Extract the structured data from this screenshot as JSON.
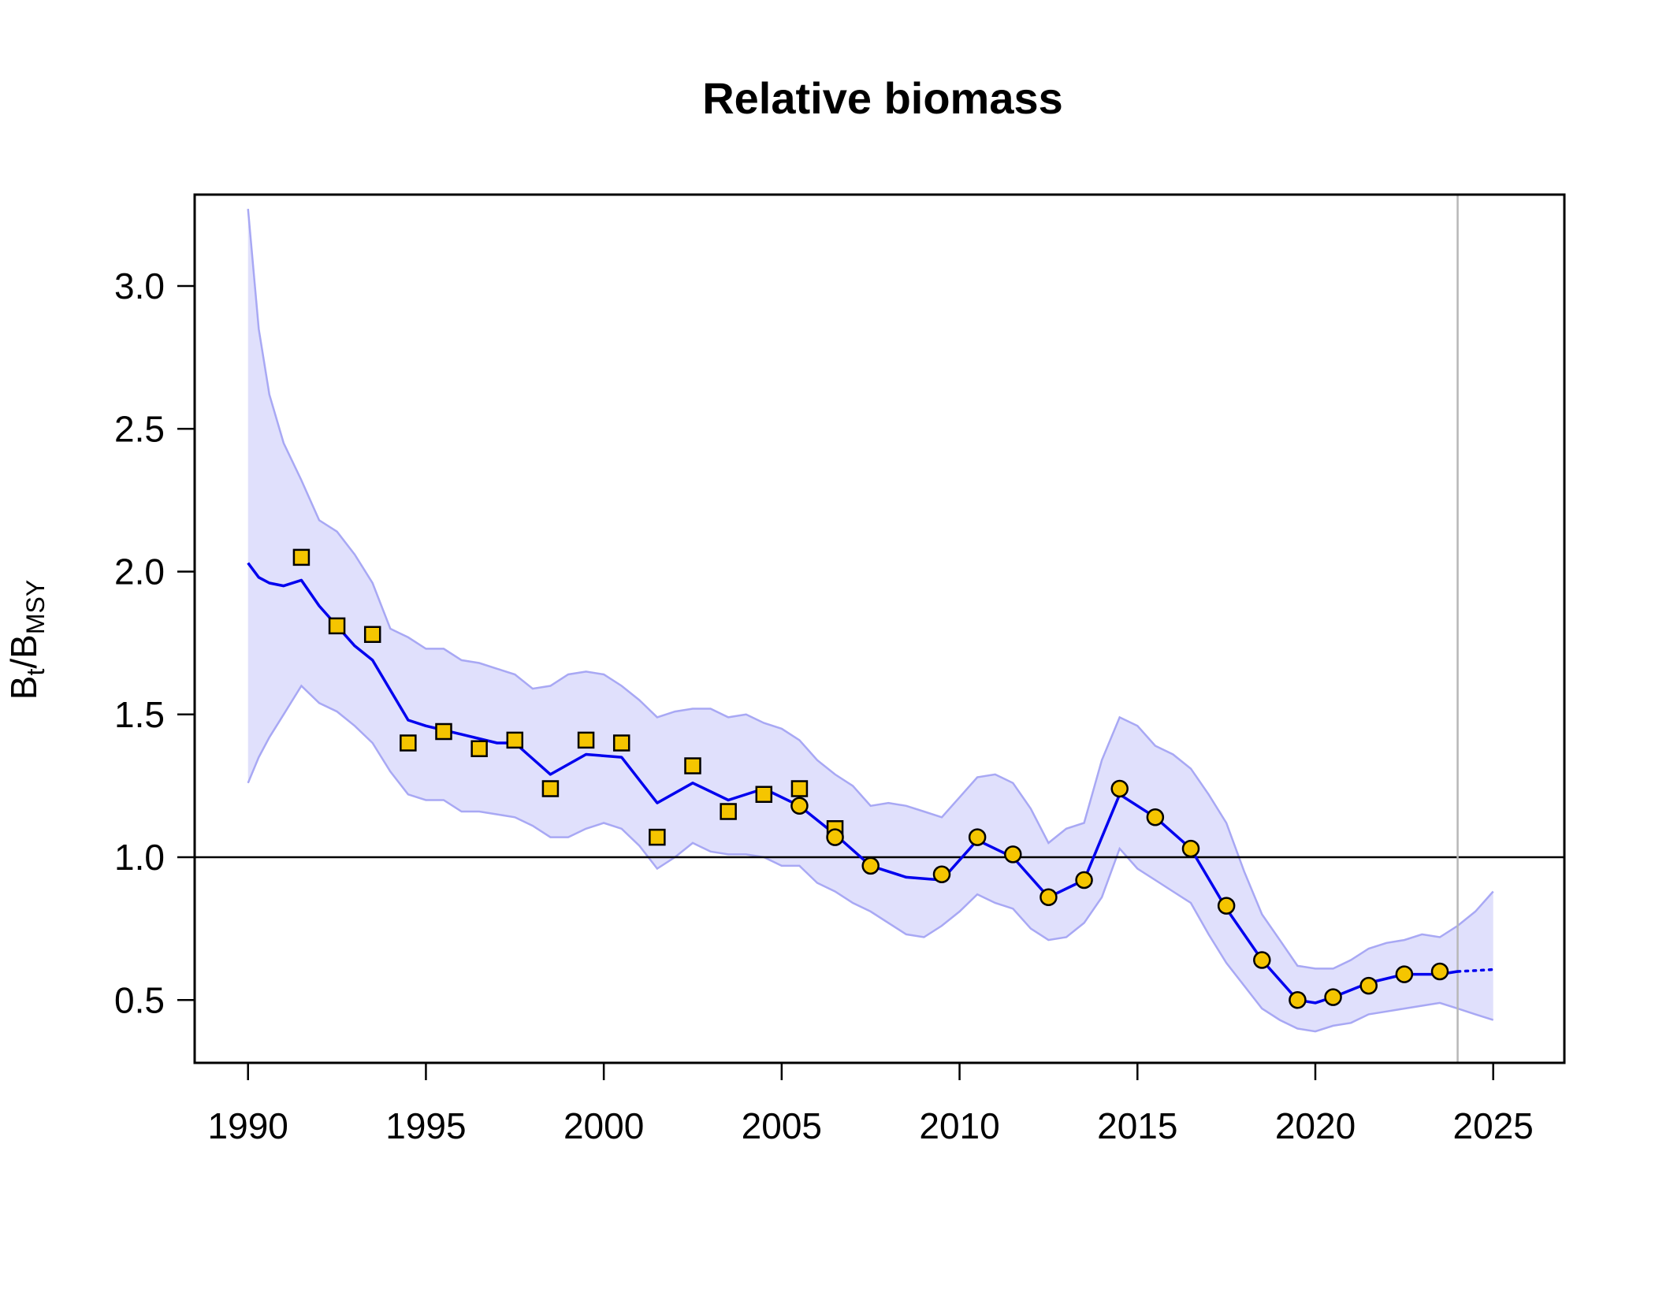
{
  "chart_data": {
    "type": "line",
    "title": "Relative biomass",
    "xlabel": "",
    "ylabel": {
      "base": "B",
      "sub_t": "t",
      "slash": "/",
      "base2": "B",
      "sub_msy": "MSY"
    },
    "xlim": [
      1988.5,
      2027
    ],
    "ylim": [
      0.28,
      3.32
    ],
    "x_ticks": [
      1990,
      1995,
      2000,
      2005,
      2010,
      2015,
      2020,
      2025
    ],
    "x_tick_labels": [
      "1990",
      "1995",
      "2000",
      "2005",
      "2010",
      "2015",
      "2020",
      "2025"
    ],
    "y_ticks": [
      0.5,
      1.0,
      1.5,
      2.0,
      2.5,
      3.0
    ],
    "y_tick_labels": [
      "0.5",
      "1.0",
      "1.5",
      "2.0",
      "2.5",
      "3.0"
    ],
    "reference_line": 1.0,
    "assessment_year_line": 2024,
    "grid": false,
    "colors": {
      "estimate_line": "#0000ee",
      "ci_fill": "#e0e0fc",
      "ci_edge": "#a8a8f4",
      "marker_fill": "#f5c500",
      "marker_edge": "#000000",
      "reference_line": "#000000",
      "vertical_line": "#b8b8b8"
    },
    "estimate": {
      "x": [
        1990,
        1990.3,
        1990.6,
        1991,
        1991.5,
        1992,
        1993,
        1993.5,
        1994.5,
        1995,
        1996,
        1997,
        1997.5,
        1998.5,
        1999.5,
        2000.5,
        2001.5,
        2002.5,
        2003.5,
        2004.5,
        2005.5,
        2006.5,
        2007.5,
        2008.5,
        2009.5,
        2010.5,
        2011.5,
        2012.5,
        2013.5,
        2014.5,
        2015.5,
        2016.5,
        2017.5,
        2018.5,
        2019.5,
        2020.0,
        2020.5,
        2021.5,
        2022.5,
        2023.5,
        2024
      ],
      "y": [
        2.03,
        1.98,
        1.96,
        1.95,
        1.97,
        1.88,
        1.74,
        1.69,
        1.48,
        1.46,
        1.43,
        1.4,
        1.4,
        1.29,
        1.36,
        1.35,
        1.19,
        1.26,
        1.2,
        1.24,
        1.18,
        1.08,
        0.97,
        0.93,
        0.92,
        1.06,
        1.0,
        0.86,
        0.92,
        1.22,
        1.14,
        1.03,
        0.82,
        0.64,
        0.5,
        0.49,
        0.51,
        0.56,
        0.59,
        0.59,
        0.6
      ]
    },
    "projection": {
      "x": [
        2024,
        2024.5,
        2025
      ],
      "y": [
        0.6,
        0.603,
        0.607
      ]
    },
    "ci_upper": {
      "x": [
        1990,
        1990.3,
        1990.6,
        1991,
        1991.5,
        1992,
        1992.5,
        1993,
        1993.5,
        1994,
        1994.5,
        1995,
        1995.5,
        1996,
        1996.5,
        1997,
        1997.5,
        1998,
        1998.5,
        1999,
        1999.5,
        2000,
        2000.5,
        2001,
        2001.5,
        2002,
        2002.5,
        2003,
        2003.5,
        2004,
        2004.5,
        2005,
        2005.5,
        2006,
        2006.5,
        2007,
        2007.5,
        2008,
        2008.5,
        2009,
        2009.5,
        2010,
        2010.5,
        2011,
        2011.5,
        2012,
        2012.5,
        2013,
        2013.5,
        2014,
        2014.5,
        2015,
        2015.5,
        2016,
        2016.5,
        2017,
        2017.5,
        2018,
        2018.5,
        2019,
        2019.5,
        2020,
        2020.5,
        2021,
        2021.5,
        2022,
        2022.5,
        2023,
        2023.5,
        2024,
        2024.5,
        2025
      ],
      "y": [
        3.27,
        2.85,
        2.62,
        2.45,
        2.32,
        2.18,
        2.14,
        2.06,
        1.96,
        1.8,
        1.77,
        1.73,
        1.73,
        1.69,
        1.68,
        1.66,
        1.64,
        1.59,
        1.6,
        1.64,
        1.65,
        1.64,
        1.6,
        1.55,
        1.49,
        1.51,
        1.52,
        1.52,
        1.49,
        1.5,
        1.47,
        1.45,
        1.41,
        1.34,
        1.29,
        1.25,
        1.18,
        1.19,
        1.18,
        1.16,
        1.14,
        1.21,
        1.28,
        1.29,
        1.26,
        1.17,
        1.05,
        1.1,
        1.12,
        1.34,
        1.49,
        1.46,
        1.39,
        1.36,
        1.31,
        1.22,
        1.12,
        0.95,
        0.8,
        0.71,
        0.62,
        0.61,
        0.61,
        0.64,
        0.68,
        0.7,
        0.71,
        0.73,
        0.72,
        0.76,
        0.81,
        0.88
      ]
    },
    "ci_lower": {
      "x": [
        1990,
        1990.3,
        1990.6,
        1991,
        1991.5,
        1992,
        1992.5,
        1993,
        1993.5,
        1994,
        1994.5,
        1995,
        1995.5,
        1996,
        1996.5,
        1997,
        1997.5,
        1998,
        1998.5,
        1999,
        1999.5,
        2000,
        2000.5,
        2001,
        2001.5,
        2002,
        2002.5,
        2003,
        2003.5,
        2004,
        2004.5,
        2005,
        2005.5,
        2006,
        2006.5,
        2007,
        2007.5,
        2008,
        2008.5,
        2009,
        2009.5,
        2010,
        2010.5,
        2011,
        2011.5,
        2012,
        2012.5,
        2013,
        2013.5,
        2014,
        2014.5,
        2015,
        2015.5,
        2016,
        2016.5,
        2017,
        2017.5,
        2018,
        2018.5,
        2019,
        2019.5,
        2020,
        2020.5,
        2021,
        2021.5,
        2022,
        2022.5,
        2023,
        2023.5,
        2024,
        2024.5,
        2025
      ],
      "y": [
        1.26,
        1.35,
        1.42,
        1.5,
        1.6,
        1.54,
        1.51,
        1.46,
        1.4,
        1.3,
        1.22,
        1.2,
        1.2,
        1.16,
        1.16,
        1.15,
        1.14,
        1.11,
        1.07,
        1.07,
        1.1,
        1.12,
        1.1,
        1.04,
        0.96,
        1.0,
        1.05,
        1.02,
        1.01,
        1.01,
        1.0,
        0.97,
        0.97,
        0.91,
        0.88,
        0.84,
        0.81,
        0.77,
        0.73,
        0.72,
        0.76,
        0.81,
        0.87,
        0.84,
        0.82,
        0.75,
        0.71,
        0.72,
        0.77,
        0.86,
        1.03,
        0.96,
        0.92,
        0.88,
        0.84,
        0.73,
        0.63,
        0.55,
        0.47,
        0.43,
        0.4,
        0.39,
        0.41,
        0.42,
        0.45,
        0.46,
        0.47,
        0.48,
        0.49,
        0.47,
        0.45,
        0.43
      ]
    },
    "index_series_squares": {
      "x": [
        1991.5,
        1992.5,
        1993.5,
        1994.5,
        1995.5,
        1996.5,
        1997.5,
        1998.5,
        1999.5,
        2000.5,
        2001.5,
        2002.5,
        2003.5,
        2004.5,
        2005.5,
        2006.5
      ],
      "y": [
        2.05,
        1.81,
        1.78,
        1.4,
        1.44,
        1.38,
        1.41,
        1.24,
        1.41,
        1.4,
        1.07,
        1.32,
        1.16,
        1.22,
        1.24,
        1.1
      ]
    },
    "index_series_circles": {
      "x": [
        2005.5,
        2006.5,
        2007.5,
        2009.5,
        2010.5,
        2011.5,
        2012.5,
        2013.5,
        2014.5,
        2015.5,
        2016.5,
        2017.5,
        2018.5,
        2019.5,
        2020.5,
        2021.5,
        2022.5,
        2023.5
      ],
      "y": [
        1.18,
        1.07,
        0.97,
        0.94,
        1.07,
        1.01,
        0.86,
        0.92,
        1.24,
        1.14,
        1.03,
        0.83,
        0.64,
        0.5,
        0.51,
        0.55,
        0.59,
        0.6
      ]
    }
  }
}
